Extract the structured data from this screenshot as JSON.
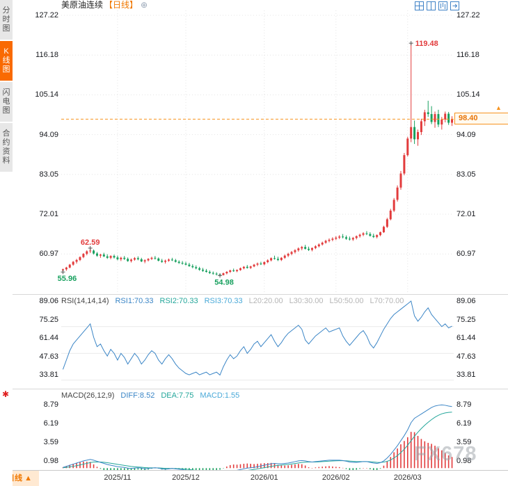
{
  "colors": {
    "up": "#e23b3c",
    "down": "#17a05e",
    "accent": "#f7931e",
    "blue": "#3a85c6",
    "teal": "#23a69a",
    "grid": "#e4e4e4",
    "icon_blue": "#3f82c6"
  },
  "sidebar": {
    "tabs": [
      {
        "label": "分时图",
        "active": false
      },
      {
        "label": "K线图",
        "active": true
      },
      {
        "label": "闪电图",
        "active": false
      },
      {
        "label": "合约资料",
        "active": false
      }
    ],
    "tool_icon": "✱"
  },
  "header": {
    "title": "美原油连续",
    "period": "【日线】",
    "add_icon": "⊕"
  },
  "toolbar": {
    "icons": [
      "layout-grid",
      "layout-vsplit",
      "layout-kline",
      "layout-expand"
    ]
  },
  "price_tag": {
    "label": "98.40"
  },
  "bottom_bar": {
    "period": "日线",
    "arrow": "▲"
  },
  "watermark": "FX678",
  "rsi_header": {
    "label": "RSI(14,14,14)",
    "rsi1": "RSI1:70.33",
    "rsi2": "RSI2:70.33",
    "rsi3": "RSI3:70.33",
    "l20": "L20:20.00",
    "l30": "L30:30.00",
    "l50": "L50:50.00",
    "l70": "L70:70.00"
  },
  "macd_header": {
    "label": "MACD(26,12,9)",
    "diff": "DIFF:8.52",
    "dea": "DEA:7.75",
    "macd": "MACD:1.55"
  },
  "chart_data": {
    "type": "candlestick",
    "title": "美原油连续 日线",
    "x_ticks": [
      {
        "index": 16,
        "label": "2025/11"
      },
      {
        "index": 36,
        "label": "2025/12"
      },
      {
        "index": 59,
        "label": "2026/01"
      },
      {
        "index": 80,
        "label": "2026/02"
      },
      {
        "index": 101,
        "label": "2026/03"
      }
    ],
    "main": {
      "axis_values": [
        127.22,
        116.18,
        105.14,
        94.09,
        83.05,
        72.01,
        60.97
      ],
      "last_price": 98.4,
      "annotations": [
        {
          "index": 102,
          "value": 119.48,
          "text": "119.48",
          "color": "#e23b3c",
          "position": "right"
        },
        {
          "index": 8,
          "value": 62.59,
          "text": "62.59",
          "color": "#e23b3c",
          "position": "top"
        },
        {
          "index": 0,
          "value": 55.96,
          "text": "55.96",
          "color": "#17a05e",
          "position": "bottom"
        },
        {
          "index": 46,
          "value": 54.98,
          "text": "54.98",
          "color": "#17a05e",
          "position": "bottom"
        }
      ],
      "ohlc": [
        [
          56.4,
          56.9,
          55.96,
          56.7
        ],
        [
          56.7,
          57.4,
          56.3,
          57.2
        ],
        [
          57.2,
          58.2,
          57.0,
          58.0
        ],
        [
          58.0,
          59.0,
          57.7,
          58.8
        ],
        [
          58.8,
          59.6,
          58.3,
          59.3
        ],
        [
          59.3,
          60.3,
          59.0,
          60.1
        ],
        [
          60.1,
          61.2,
          59.8,
          61.0
        ],
        [
          61.0,
          62.0,
          60.6,
          61.7
        ],
        [
          61.7,
          62.59,
          61.2,
          61.9
        ],
        [
          61.9,
          62.2,
          60.8,
          61.1
        ],
        [
          61.1,
          61.5,
          60.2,
          60.5
        ],
        [
          60.5,
          61.0,
          59.9,
          60.8
        ],
        [
          60.8,
          61.3,
          60.1,
          60.3
        ],
        [
          60.3,
          60.9,
          59.6,
          59.9
        ],
        [
          59.9,
          60.6,
          59.5,
          60.4
        ],
        [
          60.4,
          60.8,
          59.7,
          60.0
        ],
        [
          60.0,
          60.5,
          59.2,
          59.5
        ],
        [
          59.5,
          60.2,
          59.0,
          59.9
        ],
        [
          59.9,
          60.4,
          59.3,
          59.6
        ],
        [
          59.6,
          60.0,
          58.8,
          59.0
        ],
        [
          59.0,
          59.7,
          58.6,
          59.4
        ],
        [
          59.4,
          60.1,
          59.1,
          59.8
        ],
        [
          59.8,
          60.3,
          59.2,
          59.5
        ],
        [
          59.5,
          59.9,
          58.7,
          58.9
        ],
        [
          58.9,
          59.5,
          58.4,
          59.2
        ],
        [
          59.2,
          59.8,
          58.9,
          59.6
        ],
        [
          59.6,
          60.2,
          59.3,
          59.9
        ],
        [
          59.9,
          60.4,
          59.4,
          59.7
        ],
        [
          59.7,
          60.0,
          58.9,
          59.1
        ],
        [
          59.1,
          59.6,
          58.5,
          58.8
        ],
        [
          58.8,
          59.4,
          58.3,
          59.1
        ],
        [
          59.1,
          59.7,
          58.8,
          59.4
        ],
        [
          59.4,
          59.9,
          59.0,
          59.2
        ],
        [
          59.2,
          59.6,
          58.6,
          58.8
        ],
        [
          58.8,
          59.2,
          58.2,
          58.5
        ],
        [
          58.5,
          59.0,
          58.0,
          58.3
        ],
        [
          58.3,
          58.8,
          57.8,
          58.0
        ],
        [
          58.0,
          58.5,
          57.4,
          57.6
        ],
        [
          57.6,
          58.1,
          57.0,
          57.3
        ],
        [
          57.3,
          57.8,
          56.7,
          57.0
        ],
        [
          57.0,
          57.4,
          56.3,
          56.6
        ],
        [
          56.6,
          57.1,
          56.0,
          56.3
        ],
        [
          56.3,
          56.8,
          55.8,
          56.0
        ],
        [
          56.0,
          56.4,
          55.4,
          55.7
        ],
        [
          55.7,
          56.1,
          55.2,
          55.5
        ],
        [
          55.5,
          55.9,
          55.0,
          55.3
        ],
        [
          55.3,
          55.6,
          54.98,
          55.1
        ],
        [
          55.1,
          55.8,
          55.0,
          55.6
        ],
        [
          55.6,
          56.2,
          55.3,
          56.0
        ],
        [
          56.0,
          56.6,
          55.7,
          56.4
        ],
        [
          56.4,
          56.9,
          56.0,
          56.2
        ],
        [
          56.2,
          56.7,
          55.9,
          56.5
        ],
        [
          56.5,
          57.2,
          56.3,
          57.0
        ],
        [
          57.0,
          57.6,
          56.7,
          57.4
        ],
        [
          57.4,
          57.9,
          56.9,
          57.1
        ],
        [
          57.1,
          57.7,
          56.8,
          57.5
        ],
        [
          57.5,
          58.2,
          57.3,
          58.0
        ],
        [
          58.0,
          58.6,
          57.6,
          58.3
        ],
        [
          58.3,
          58.8,
          57.9,
          58.1
        ],
        [
          58.1,
          58.9,
          57.8,
          58.7
        ],
        [
          58.7,
          59.5,
          58.4,
          59.2
        ],
        [
          59.2,
          60.0,
          58.9,
          59.8
        ],
        [
          59.8,
          60.5,
          59.4,
          59.6
        ],
        [
          59.6,
          60.2,
          59.0,
          59.3
        ],
        [
          59.3,
          60.1,
          59.0,
          59.9
        ],
        [
          59.9,
          60.8,
          59.6,
          60.5
        ],
        [
          60.5,
          61.3,
          60.1,
          61.0
        ],
        [
          61.0,
          61.8,
          60.6,
          61.5
        ],
        [
          61.5,
          62.3,
          61.1,
          62.0
        ],
        [
          62.0,
          62.8,
          61.6,
          62.5
        ],
        [
          62.5,
          63.2,
          62.0,
          62.9
        ],
        [
          62.9,
          63.5,
          62.2,
          62.4
        ],
        [
          62.4,
          63.0,
          61.8,
          62.1
        ],
        [
          62.1,
          62.8,
          61.7,
          62.6
        ],
        [
          62.6,
          63.4,
          62.3,
          63.1
        ],
        [
          63.1,
          63.9,
          62.8,
          63.6
        ],
        [
          63.6,
          64.4,
          63.3,
          64.1
        ],
        [
          64.1,
          64.9,
          63.8,
          64.6
        ],
        [
          64.6,
          65.3,
          64.2,
          64.9
        ],
        [
          64.9,
          65.6,
          64.5,
          65.2
        ],
        [
          65.2,
          65.9,
          64.8,
          65.5
        ],
        [
          65.5,
          66.2,
          65.1,
          65.8
        ],
        [
          65.8,
          66.5,
          65.3,
          65.6
        ],
        [
          65.6,
          66.1,
          64.9,
          65.2
        ],
        [
          65.2,
          65.8,
          64.7,
          65.0
        ],
        [
          65.0,
          65.7,
          64.6,
          65.4
        ],
        [
          65.4,
          66.1,
          65.0,
          65.9
        ],
        [
          65.9,
          66.6,
          65.5,
          66.3
        ],
        [
          66.3,
          67.0,
          65.9,
          66.7
        ],
        [
          66.7,
          67.3,
          66.2,
          66.5
        ],
        [
          66.5,
          67.0,
          65.8,
          66.0
        ],
        [
          66.0,
          66.6,
          65.4,
          65.7
        ],
        [
          65.7,
          66.4,
          65.3,
          66.2
        ],
        [
          66.2,
          67.2,
          65.9,
          67.0
        ],
        [
          67.0,
          68.8,
          66.8,
          68.5
        ],
        [
          68.5,
          71.0,
          68.2,
          70.6
        ],
        [
          70.6,
          73.5,
          70.3,
          73.0
        ],
        [
          73.0,
          76.5,
          72.6,
          76.0
        ],
        [
          76.0,
          80.0,
          75.5,
          79.4
        ],
        [
          79.4,
          84.0,
          78.8,
          83.3
        ],
        [
          83.3,
          89.0,
          82.8,
          88.4
        ],
        [
          88.4,
          93.5,
          88.0,
          93.0
        ],
        [
          93.0,
          119.48,
          92.0,
          96.2
        ],
        [
          96.2,
          98.0,
          91.5,
          92.8
        ],
        [
          92.8,
          95.5,
          91.0,
          94.8
        ],
        [
          94.8,
          98.5,
          94.0,
          97.8
        ],
        [
          97.8,
          101.0,
          96.5,
          100.3
        ],
        [
          100.3,
          103.5,
          99.0,
          99.8
        ],
        [
          99.8,
          102.0,
          97.0,
          97.6
        ],
        [
          97.6,
          100.5,
          96.0,
          99.8
        ],
        [
          99.8,
          101.0,
          96.2,
          96.9
        ],
        [
          96.9,
          99.0,
          95.5,
          98.3
        ],
        [
          98.3,
          100.5,
          97.5,
          99.9
        ],
        [
          99.9,
          100.4,
          96.8,
          97.4
        ],
        [
          97.4,
          99.2,
          96.5,
          98.4
        ]
      ]
    },
    "rsi": {
      "axis_values": [
        89.06,
        75.25,
        61.44,
        47.63,
        33.81
      ],
      "gridlines": [
        70,
        50,
        30
      ],
      "values": [
        38,
        45,
        52,
        57,
        60,
        63,
        66,
        69,
        72,
        62,
        55,
        57,
        52,
        48,
        53,
        50,
        45,
        50,
        47,
        42,
        46,
        50,
        47,
        42,
        45,
        49,
        52,
        50,
        45,
        42,
        46,
        49,
        46,
        42,
        39,
        37,
        35,
        34,
        35,
        36,
        34,
        35,
        36,
        34,
        35,
        36,
        33.81,
        40,
        45,
        49,
        46,
        48,
        52,
        55,
        50,
        53,
        57,
        59,
        55,
        58,
        61,
        64,
        59,
        55,
        58,
        62,
        65,
        67,
        69,
        71,
        68,
        60,
        57,
        60,
        63,
        65,
        67,
        69,
        66,
        67,
        68,
        69,
        63,
        59,
        56,
        59,
        62,
        65,
        67,
        63,
        57,
        54,
        58,
        63,
        68,
        72,
        76,
        79,
        81,
        83,
        85,
        87,
        89.06,
        78,
        74,
        77,
        81,
        84,
        79,
        76,
        73,
        70,
        72,
        69,
        70.33
      ]
    },
    "macd": {
      "axis_values": [
        8.79,
        6.19,
        3.59,
        0.98
      ],
      "diff": [
        0.1,
        0.25,
        0.4,
        0.55,
        0.7,
        0.85,
        1.0,
        1.1,
        1.2,
        1.1,
        0.95,
        0.8,
        0.65,
        0.5,
        0.4,
        0.3,
        0.2,
        0.15,
        0.1,
        0.0,
        -0.05,
        0.0,
        0.05,
        0.0,
        -0.1,
        -0.05,
        0.0,
        0.05,
        0.0,
        -0.1,
        -0.15,
        -0.1,
        -0.05,
        -0.1,
        -0.15,
        -0.2,
        -0.3,
        -0.4,
        -0.5,
        -0.6,
        -0.7,
        -0.75,
        -0.8,
        -0.85,
        -0.9,
        -0.9,
        -0.85,
        -0.75,
        -0.6,
        -0.45,
        -0.35,
        -0.3,
        -0.2,
        -0.1,
        0.0,
        0.05,
        0.1,
        0.2,
        0.3,
        0.4,
        0.5,
        0.6,
        0.65,
        0.6,
        0.6,
        0.65,
        0.7,
        0.8,
        0.9,
        1.0,
        1.05,
        1.0,
        0.9,
        0.85,
        0.9,
        0.95,
        1.0,
        1.05,
        1.1,
        1.1,
        1.1,
        1.1,
        1.05,
        0.95,
        0.85,
        0.8,
        0.8,
        0.85,
        0.9,
        0.9,
        0.8,
        0.7,
        0.65,
        0.75,
        1.0,
        1.4,
        1.9,
        2.5,
        3.1,
        3.8,
        4.5,
        5.3,
        6.3,
        6.9,
        7.2,
        7.5,
        7.8,
        8.1,
        8.4,
        8.6,
        8.7,
        8.75,
        8.7,
        8.6,
        8.52
      ],
      "dea": [
        0.05,
        0.1,
        0.17,
        0.25,
        0.34,
        0.44,
        0.55,
        0.66,
        0.77,
        0.84,
        0.86,
        0.85,
        0.81,
        0.75,
        0.68,
        0.6,
        0.52,
        0.45,
        0.38,
        0.3,
        0.23,
        0.18,
        0.15,
        0.12,
        0.08,
        0.05,
        0.04,
        0.04,
        0.03,
        0.0,
        -0.03,
        -0.05,
        -0.05,
        -0.06,
        -0.08,
        -0.1,
        -0.14,
        -0.19,
        -0.25,
        -0.32,
        -0.4,
        -0.47,
        -0.54,
        -0.6,
        -0.66,
        -0.71,
        -0.74,
        -0.74,
        -0.71,
        -0.66,
        -0.6,
        -0.54,
        -0.47,
        -0.4,
        -0.32,
        -0.25,
        -0.18,
        -0.1,
        -0.02,
        0.06,
        0.15,
        0.24,
        0.32,
        0.38,
        0.42,
        0.47,
        0.51,
        0.57,
        0.64,
        0.71,
        0.78,
        0.82,
        0.84,
        0.84,
        0.85,
        0.87,
        0.9,
        0.93,
        0.96,
        0.99,
        1.01,
        1.03,
        1.03,
        1.01,
        0.98,
        0.94,
        0.91,
        0.9,
        0.9,
        0.9,
        0.88,
        0.84,
        0.8,
        0.79,
        0.83,
        0.94,
        1.13,
        1.4,
        1.74,
        2.15,
        2.62,
        3.16,
        3.79,
        4.41,
        4.97,
        5.48,
        5.94,
        6.35,
        6.72,
        7.05,
        7.32,
        7.52,
        7.65,
        7.72,
        7.75
      ]
    }
  }
}
